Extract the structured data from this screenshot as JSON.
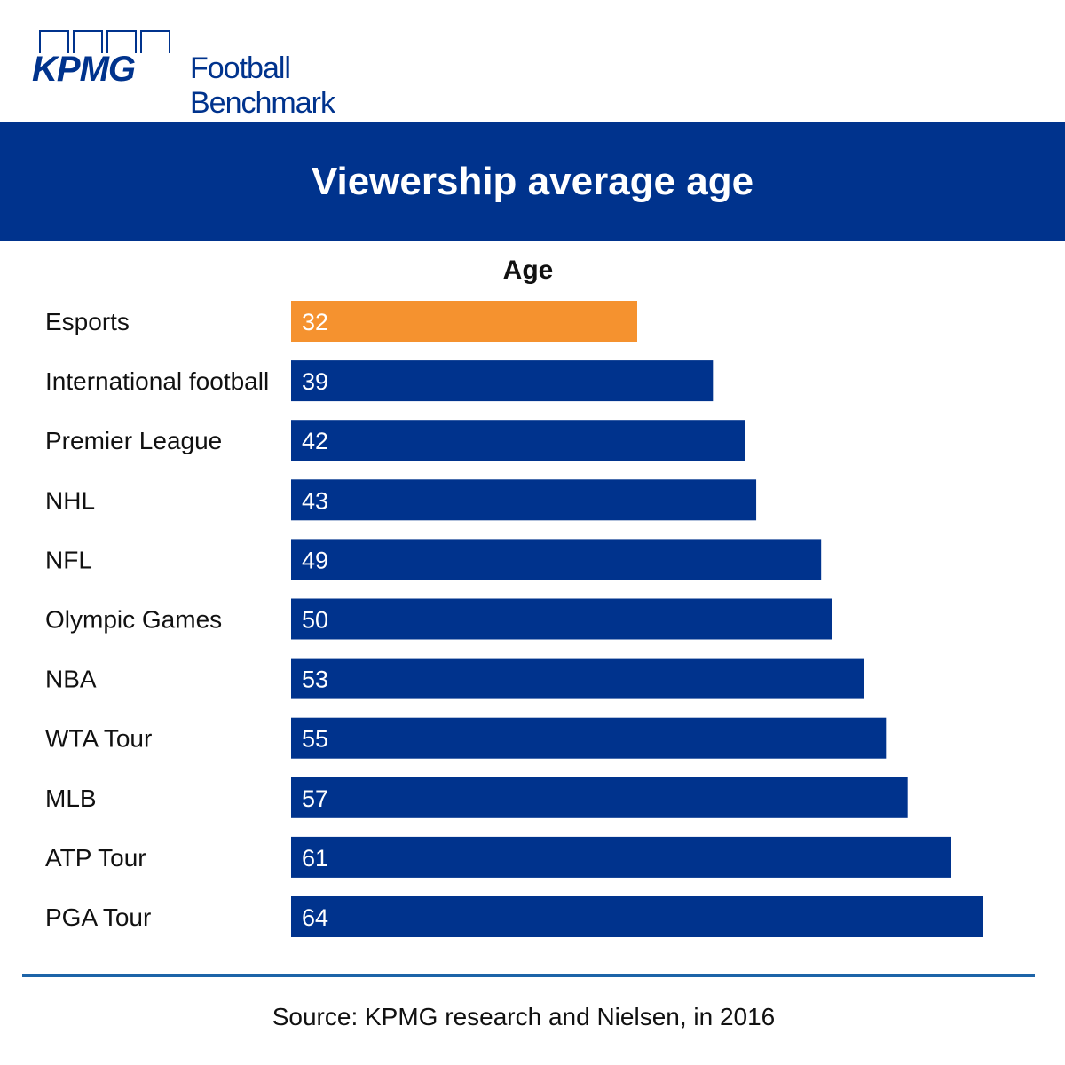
{
  "header": {
    "logo_text": "KPMG",
    "brand_text": "Football Benchmark"
  },
  "colors": {
    "primary": "#00338d",
    "highlight": "#f5922f",
    "footer_line": "#1d64a8"
  },
  "chart_data": {
    "type": "bar",
    "orientation": "horizontal",
    "title": "Viewership average age",
    "xlabel": "Age",
    "ylabel": "",
    "xlim": [
      0,
      64
    ],
    "categories": [
      "Esports",
      "International football",
      "Premier League",
      "NHL",
      "NFL",
      "Olympic Games",
      "NBA",
      "WTA Tour",
      "MLB",
      "ATP Tour",
      "PGA Tour"
    ],
    "values": [
      32,
      39,
      42,
      43,
      49,
      50,
      53,
      55,
      57,
      61,
      64
    ],
    "highlight_categories": [
      "Esports"
    ],
    "grid": false,
    "legend": "none"
  },
  "footer": {
    "source": "Source: KPMG research and Nielsen, in 2016"
  }
}
